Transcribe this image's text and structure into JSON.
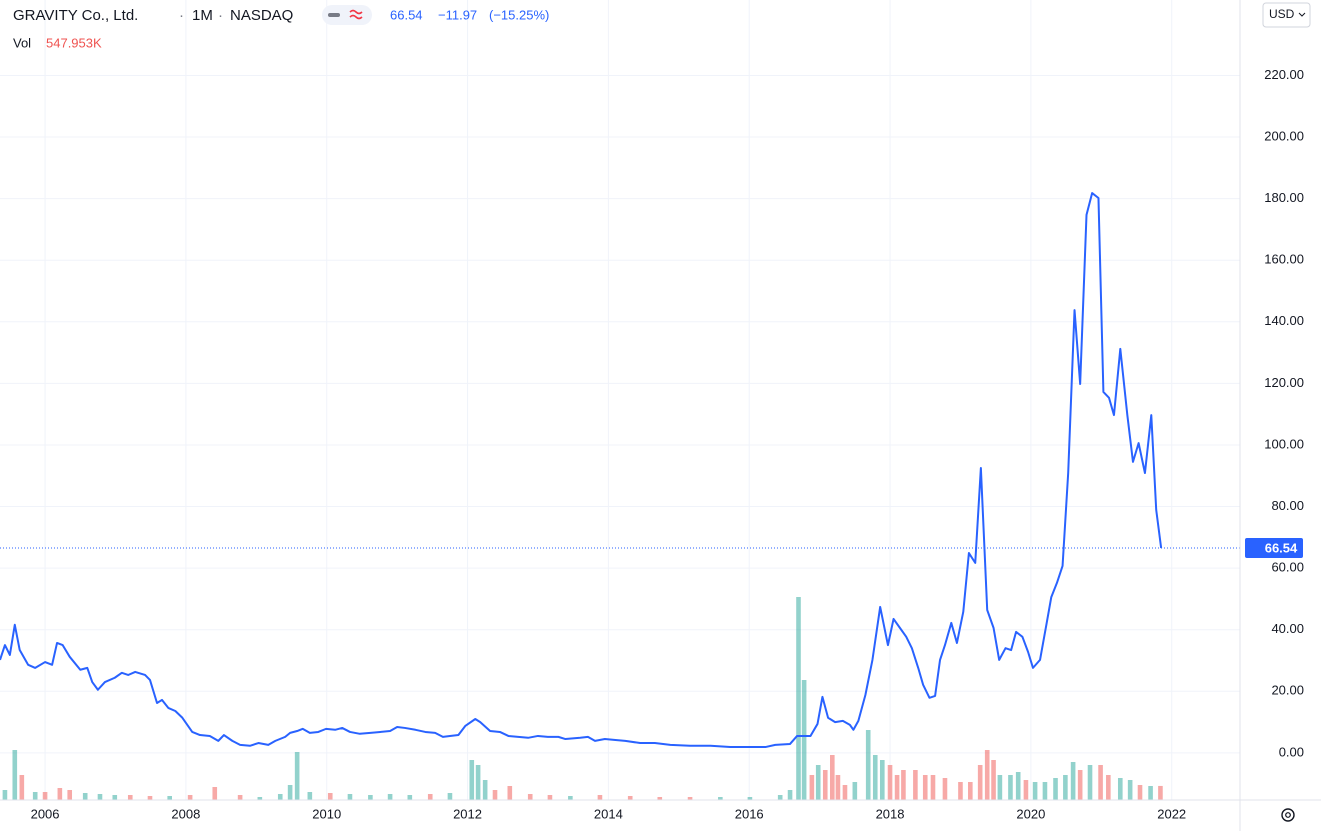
{
  "chart_data": {
    "type": "line",
    "title": "GRAVITY Co., Ltd.",
    "interval": "1M",
    "exchange": "NASDAQ",
    "last_price": 66.54,
    "change": "−11.97",
    "change_pct": "(−15.25%)",
    "volume_caption": "Vol",
    "volume_last": "547.953K",
    "currency": "USD",
    "color": "#2962ff",
    "grid": true,
    "xlim": [
      2005.36,
      2022.97
    ],
    "ylim": [
      -15.3,
      244.5
    ],
    "xticks": [
      2006,
      2008,
      2010,
      2012,
      2014,
      2016,
      2018,
      2020,
      2022
    ],
    "yticks": [
      {
        "value": 0,
        "label": "0.00"
      },
      {
        "value": 20,
        "label": "20.00"
      },
      {
        "value": 40,
        "label": "40.00"
      },
      {
        "value": 60,
        "label": "60.00"
      },
      {
        "value": 80,
        "label": "80.00"
      },
      {
        "value": 100,
        "label": "100.00"
      },
      {
        "value": 120,
        "label": "120.00"
      },
      {
        "value": 140,
        "label": "140.00"
      },
      {
        "value": 160,
        "label": "160.00"
      },
      {
        "value": 180,
        "label": "180.00"
      },
      {
        "value": 200,
        "label": "200.00"
      },
      {
        "value": 220,
        "label": "220.00"
      }
    ],
    "x": [
      2005.36,
      2005.43,
      2005.5,
      2005.57,
      2005.64,
      2005.76,
      2005.86,
      2006.0,
      2006.1,
      2006.17,
      2006.25,
      2006.35,
      2006.5,
      2006.6,
      2006.67,
      2006.75,
      2006.85,
      2006.99,
      2007.09,
      2007.18,
      2007.28,
      2007.42,
      2007.49,
      2007.59,
      2007.66,
      2007.75,
      2007.85,
      2007.95,
      2008.09,
      2008.2,
      2008.34,
      2008.46,
      2008.54,
      2008.66,
      2008.77,
      2008.91,
      2009.03,
      2009.17,
      2009.27,
      2009.41,
      2009.48,
      2009.58,
      2009.66,
      2009.76,
      2009.88,
      2009.99,
      2010.12,
      2010.22,
      2010.33,
      2010.47,
      2010.62,
      2010.76,
      2010.9,
      2011.0,
      2011.11,
      2011.26,
      2011.4,
      2011.54,
      2011.65,
      2011.75,
      2011.87,
      2011.97,
      2012.11,
      2012.18,
      2012.32,
      2012.46,
      2012.58,
      2012.72,
      2012.86,
      2013.0,
      2013.14,
      2013.29,
      2013.39,
      2013.6,
      2013.71,
      2013.81,
      2013.95,
      2014.1,
      2014.24,
      2014.45,
      2014.66,
      2014.88,
      2015.16,
      2015.45,
      2015.73,
      2016.01,
      2016.23,
      2016.37,
      2016.58,
      2016.68,
      2016.87,
      2016.97,
      2017.04,
      2017.12,
      2017.22,
      2017.33,
      2017.43,
      2017.48,
      2017.55,
      2017.65,
      2017.75,
      2017.86,
      2017.97,
      2018.05,
      2018.14,
      2018.23,
      2018.31,
      2018.4,
      2018.47,
      2018.56,
      2018.64,
      2018.71,
      2018.78,
      2018.87,
      2018.95,
      2019.04,
      2019.12,
      2019.21,
      2019.29,
      2019.38,
      2019.47,
      2019.55,
      2019.64,
      2019.72,
      2019.79,
      2019.88,
      2019.96,
      2020.03,
      2020.13,
      2020.22,
      2020.29,
      2020.37,
      2020.45,
      2020.53,
      2020.62,
      2020.7,
      2020.79,
      2020.87,
      2020.96,
      2021.03,
      2021.11,
      2021.18,
      2021.27,
      2021.37,
      2021.45,
      2021.53,
      2021.62,
      2021.71,
      2021.78,
      2021.85
    ],
    "values": [
      30.2,
      35,
      31.8,
      41.6,
      33.4,
      28.6,
      27.6,
      29.5,
      28.6,
      35.7,
      35,
      31.2,
      27,
      27.6,
      23,
      20.5,
      23,
      24.4,
      26,
      25.3,
      26.3,
      25.3,
      23.7,
      16.2,
      17.2,
      14.6,
      13.6,
      11.4,
      6.8,
      5.8,
      5.5,
      3.9,
      5.8,
      3.9,
      2.6,
      2.3,
      3.2,
      2.6,
      3.9,
      5.2,
      6.5,
      7.1,
      7.8,
      6.5,
      6.8,
      7.8,
      7.5,
      8.1,
      6.8,
      6.2,
      6.5,
      6.8,
      7.1,
      8.4,
      8.1,
      7.5,
      6.8,
      6.5,
      5.2,
      5.5,
      5.8,
      8.8,
      11,
      10,
      7.1,
      6.8,
      5.5,
      5.2,
      4.9,
      5.5,
      5.2,
      5.2,
      4.5,
      4.9,
      5.2,
      3.9,
      4.5,
      4.2,
      3.9,
      3.2,
      3.2,
      2.6,
      2.3,
      2.3,
      1.9,
      1.9,
      1.9,
      2.6,
      2.9,
      5.5,
      5.5,
      9.4,
      18.2,
      11.4,
      10,
      10.4,
      9.1,
      7.5,
      10.4,
      18.8,
      30.2,
      47.4,
      35,
      43.5,
      40.6,
      37.7,
      34,
      27.6,
      22.1,
      17.9,
      18.5,
      30.2,
      35,
      42.2,
      35.7,
      45.8,
      64.9,
      61.7,
      92.5,
      46.4,
      40.6,
      30.2,
      34,
      33.4,
      39.3,
      37.7,
      32.8,
      27.6,
      30.2,
      41.6,
      50.6,
      55.2,
      60.7,
      90.9,
      143.8,
      119.8,
      174.7,
      181.8,
      180.2,
      117.2,
      115.3,
      109.7,
      131.2,
      109.7,
      94.5,
      100.6,
      90.9,
      109.7,
      78.9,
      66.54
    ],
    "volume": {
      "up_color": "#26a69a",
      "down_color": "#ef5350",
      "x": [
        2005.43,
        2005.57,
        2005.67,
        2005.86,
        2006.0,
        2006.21,
        2006.35,
        2006.57,
        2006.78,
        2006.99,
        2007.21,
        2007.49,
        2007.77,
        2008.06,
        2008.41,
        2008.77,
        2009.05,
        2009.34,
        2009.48,
        2009.58,
        2009.76,
        2010.05,
        2010.33,
        2010.62,
        2010.9,
        2011.18,
        2011.47,
        2011.75,
        2012.06,
        2012.15,
        2012.25,
        2012.39,
        2012.6,
        2012.89,
        2013.17,
        2013.46,
        2013.88,
        2014.31,
        2014.73,
        2015.16,
        2015.59,
        2016.01,
        2016.44,
        2016.58,
        2016.7,
        2016.78,
        2016.89,
        2016.98,
        2017.08,
        2017.18,
        2017.26,
        2017.36,
        2017.5,
        2017.69,
        2017.79,
        2017.89,
        2018.0,
        2018.1,
        2018.19,
        2018.36,
        2018.5,
        2018.61,
        2018.78,
        2019.0,
        2019.14,
        2019.28,
        2019.38,
        2019.47,
        2019.56,
        2019.71,
        2019.82,
        2019.93,
        2020.06,
        2020.2,
        2020.35,
        2020.49,
        2020.6,
        2020.7,
        2020.84,
        2020.99,
        2021.1,
        2021.27,
        2021.41,
        2021.55,
        2021.7,
        2021.84
      ],
      "values": [
        390000,
        1950000,
        975000,
        312000,
        312000,
        468000,
        390000,
        273000,
        234000,
        195000,
        195000,
        156000,
        156000,
        195000,
        507000,
        195000,
        117000,
        234000,
        585000,
        1872000,
        312000,
        273000,
        234000,
        195000,
        234000,
        195000,
        234000,
        273000,
        1560000,
        1365000,
        780000,
        390000,
        546000,
        234000,
        195000,
        156000,
        195000,
        156000,
        117000,
        117000,
        117000,
        117000,
        195000,
        390000,
        7917000,
        4680000,
        975000,
        1365000,
        1170000,
        1755000,
        975000,
        585000,
        702000,
        2730000,
        1755000,
        1560000,
        1365000,
        975000,
        1170000,
        1170000,
        975000,
        975000,
        858000,
        702000,
        702000,
        1365000,
        1950000,
        1560000,
        975000,
        975000,
        1092000,
        780000,
        702000,
        702000,
        858000,
        975000,
        1482000,
        1170000,
        1365000,
        1365000,
        975000,
        858000,
        780000,
        585000,
        546000,
        547953
      ],
      "up": [
        true,
        true,
        false,
        true,
        false,
        false,
        false,
        true,
        true,
        true,
        false,
        false,
        true,
        false,
        false,
        false,
        true,
        true,
        true,
        true,
        true,
        false,
        true,
        true,
        true,
        true,
        false,
        true,
        true,
        true,
        true,
        false,
        false,
        false,
        false,
        true,
        false,
        false,
        false,
        false,
        true,
        true,
        true,
        true,
        true,
        true,
        false,
        true,
        false,
        false,
        false,
        false,
        true,
        true,
        true,
        true,
        false,
        false,
        false,
        false,
        false,
        false,
        false,
        false,
        false,
        false,
        false,
        false,
        true,
        true,
        true,
        false,
        true,
        true,
        true,
        true,
        true,
        false,
        true,
        false,
        false,
        true,
        true,
        false,
        true,
        false
      ]
    }
  }
}
